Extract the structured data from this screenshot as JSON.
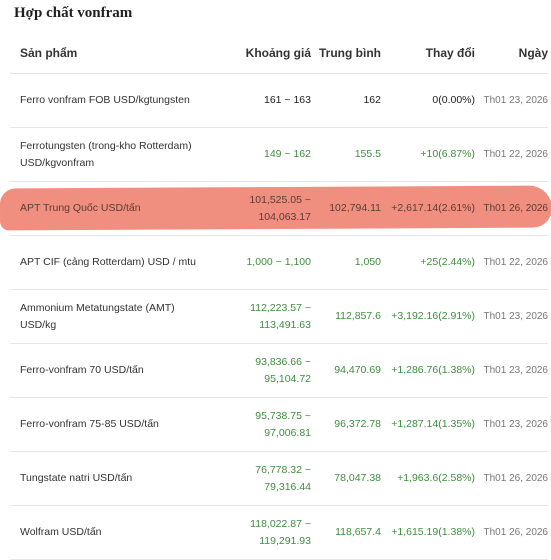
{
  "page": {
    "title": "Hợp chất vonfram"
  },
  "table": {
    "columns": {
      "product": "Sản phẩm",
      "range": "Khoảng giá",
      "average": "Trung bình",
      "change": "Thay đổi",
      "date": "Ngày"
    },
    "rows": [
      {
        "product": "Ferro vonfram FOB USD/kgtungsten",
        "range": "161 ~ 163",
        "average": "162",
        "change": "0(0.00%)",
        "date": "Th01 23, 2026",
        "trend": "neutral"
      },
      {
        "product": "Ferrotungsten (trong-kho Rotterdam) USD/kgvonfram",
        "range": "149 ~ 162",
        "average": "155.5",
        "change": "+10(6.87%)",
        "date": "Th01 22, 2026",
        "trend": "up"
      },
      {
        "product": "APT Trung Quốc USD/tấn",
        "range": "101,525.05 ~ 104,063.17",
        "average": "102,794.11",
        "change": "+2,617.14(2.61%)",
        "date": "Th01 26, 2026",
        "trend": "up",
        "highlighted": true,
        "highlight_color": "#f08f80"
      },
      {
        "product": "APT CIF (cảng Rotterdam) USD / mtu",
        "range": "1,000 ~ 1,100",
        "average": "1,050",
        "change": "+25(2.44%)",
        "date": "Th01 22, 2026",
        "trend": "up"
      },
      {
        "product": "Ammonium Metatungstate (AMT) USD/kg",
        "range": "112,223.57 ~ 113,491.63",
        "average": "112,857.6",
        "change": "+3,192.16(2.91%)",
        "date": "Th01 23, 2026",
        "trend": "up"
      },
      {
        "product": "Ferro-vonfram 70 USD/tấn",
        "range": "93,836.66 ~ 95,104.72",
        "average": "94,470.69",
        "change": "+1,286.76(1.38%)",
        "date": "Th01 23, 2026",
        "trend": "up"
      },
      {
        "product": "Ferro-vonfram 75-85 USD/tấn",
        "range": "95,738.75 ~ 97,006.81",
        "average": "96,372.78",
        "change": "+1,287.14(1.35%)",
        "date": "Th01 23, 2026",
        "trend": "up"
      },
      {
        "product": "Tungstate natri USD/tấn",
        "range": "76,778.32 ~ 79,316.44",
        "average": "78,047.38",
        "change": "+1,963.6(2.58%)",
        "date": "Th01 26, 2026",
        "trend": "up"
      },
      {
        "product": "Wolfram USD/tấn",
        "range": "118,022.87 ~ 119,291.93",
        "average": "118,657.4",
        "change": "+1,615.19(1.38%)",
        "date": "Th01 26, 2026",
        "trend": "up"
      }
    ]
  },
  "colors": {
    "up": "#3e8e3e",
    "neutral": "#222222",
    "highlight": "#f08f80"
  }
}
